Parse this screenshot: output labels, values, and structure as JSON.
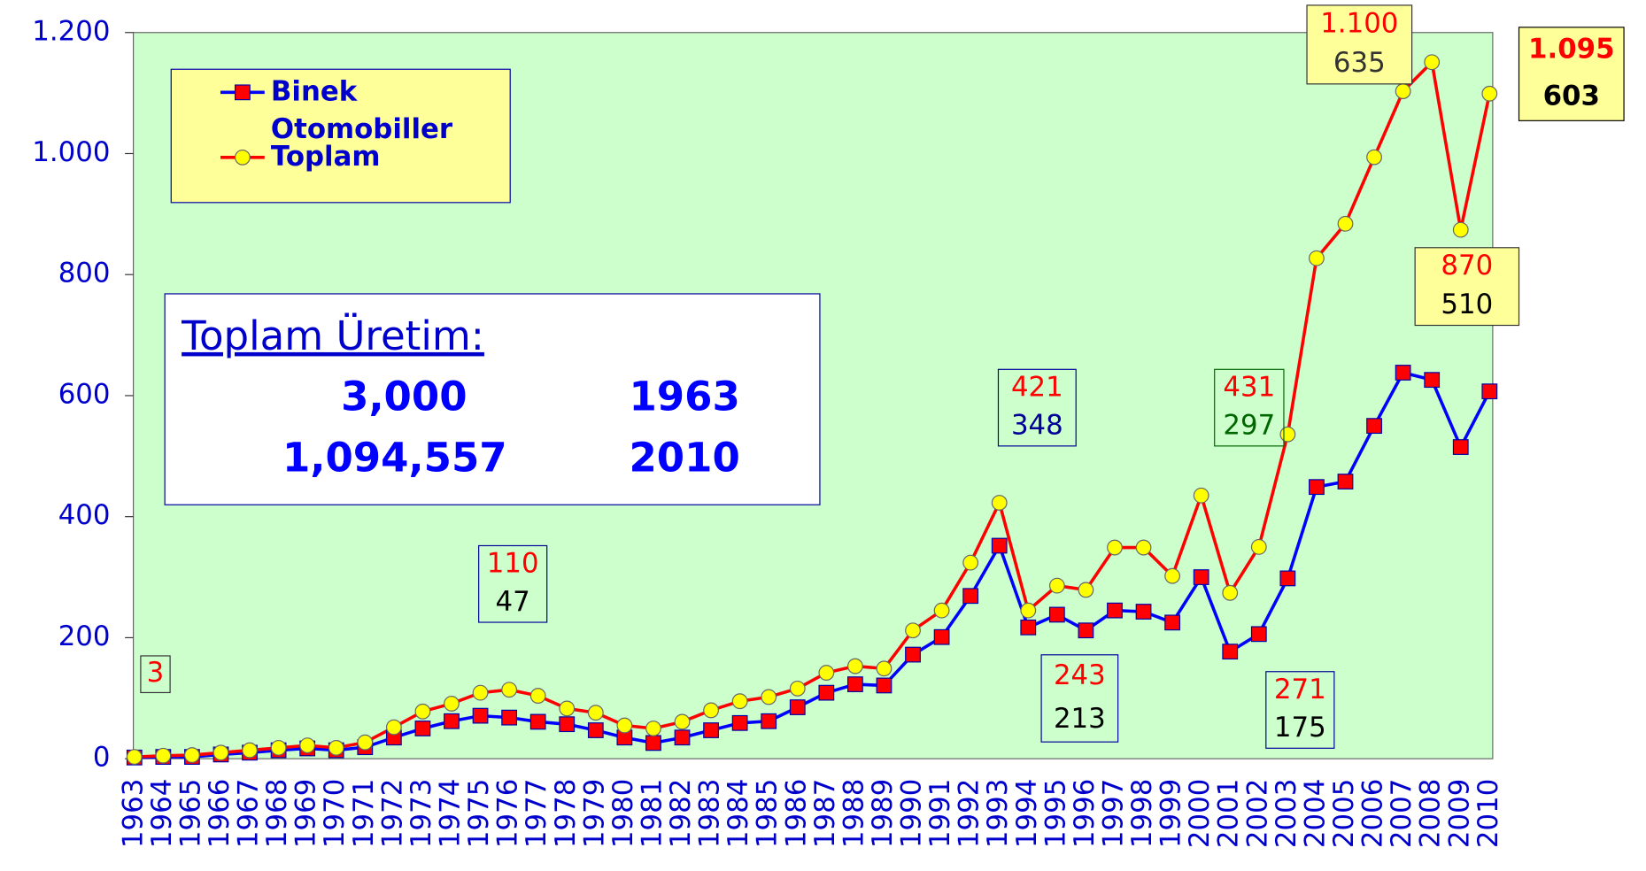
{
  "chart_data": {
    "type": "line",
    "categories": [
      "1963",
      "1964",
      "1965",
      "1966",
      "1967",
      "1968",
      "1969",
      "1970",
      "1971",
      "1972",
      "1973",
      "1974",
      "1975",
      "1976",
      "1977",
      "1978",
      "1979",
      "1980",
      "1981",
      "1982",
      "1983",
      "1984",
      "1985",
      "1986",
      "1987",
      "1988",
      "1989",
      "1990",
      "1991",
      "1992",
      "1993",
      "1994",
      "1995",
      "1996",
      "1997",
      "1998",
      "1999",
      "2000",
      "2001",
      "2002",
      "2003",
      "2004",
      "2005",
      "2006",
      "2007",
      "2008",
      "2009",
      "2010"
    ],
    "series": [
      {
        "name": "Binek Otomobiller",
        "color": "#0000ff",
        "marker_color": "#ff0000",
        "marker": "square",
        "values": [
          2,
          3,
          3,
          7,
          10,
          14,
          17,
          14,
          19,
          35,
          50,
          62,
          71,
          68,
          61,
          57,
          47,
          35,
          26,
          35,
          47,
          59,
          62,
          85,
          109,
          123,
          121,
          172,
          201,
          269,
          352,
          217,
          238,
          212,
          245,
          243,
          225,
          300,
          177,
          206,
          298,
          449,
          458,
          550,
          638,
          626,
          515,
          607
        ]
      },
      {
        "name": "Toplam",
        "color": "#ff0000",
        "marker_color": "#ffff00",
        "marker": "circle",
        "values": [
          3,
          5,
          6,
          10,
          14,
          18,
          22,
          18,
          27,
          52,
          78,
          91,
          109,
          114,
          104,
          83,
          76,
          55,
          50,
          61,
          80,
          95,
          102,
          116,
          142,
          153,
          149,
          212,
          245,
          324,
          423,
          245,
          286,
          279,
          349,
          349,
          302,
          435,
          274,
          350,
          536,
          827,
          884,
          994,
          1103,
          1151,
          874,
          1099
        ]
      }
    ],
    "ylim": [
      0,
      1200
    ],
    "yticks": [
      0,
      200,
      400,
      600,
      800,
      {
        "value": 1000,
        "label": "1.000"
      },
      {
        "value": 1200,
        "label": "1.200"
      }
    ],
    "plot_background": "#ccffcc",
    "legend": {
      "position": "top-left",
      "background": "#ffff99"
    },
    "info_box": {
      "title": "Toplam Üretim:",
      "rows": [
        [
          "3,000",
          "1963"
        ],
        [
          "1,094,557",
          "2010"
        ]
      ]
    },
    "annotations": [
      {
        "lines": [
          "3"
        ],
        "colors": [
          "#ff0000"
        ],
        "border": "#333333"
      },
      {
        "lines": [
          "110",
          "47"
        ],
        "colors": [
          "#ff0000",
          "#000000"
        ],
        "border": "#000099"
      },
      {
        "lines": [
          "421",
          "348"
        ],
        "colors": [
          "#ff0000",
          "#000099"
        ],
        "border": "#000099"
      },
      {
        "lines": [
          "243",
          "213"
        ],
        "colors": [
          "#ff0000",
          "#000000"
        ],
        "border": "#000099"
      },
      {
        "lines": [
          "431",
          "297"
        ],
        "colors": [
          "#ff0000",
          "#006600"
        ],
        "border": "#006600"
      },
      {
        "lines": [
          "271",
          "175"
        ],
        "colors": [
          "#ff0000",
          "#000000"
        ],
        "border": "#000099"
      },
      {
        "lines": [
          "1.100",
          "635"
        ],
        "colors": [
          "#ff0000",
          "#333333"
        ],
        "border": "#333333",
        "background": "#ffff99"
      },
      {
        "lines": [
          "870",
          "510"
        ],
        "colors": [
          "#ff0000",
          "#000000"
        ],
        "border": "#333333",
        "background": "#ffff99"
      },
      {
        "lines": [
          "1.095",
          "603"
        ],
        "colors": [
          "#ff0000",
          "#000000"
        ],
        "border": "#000000",
        "background": "#ffff99",
        "bold": true
      }
    ]
  }
}
